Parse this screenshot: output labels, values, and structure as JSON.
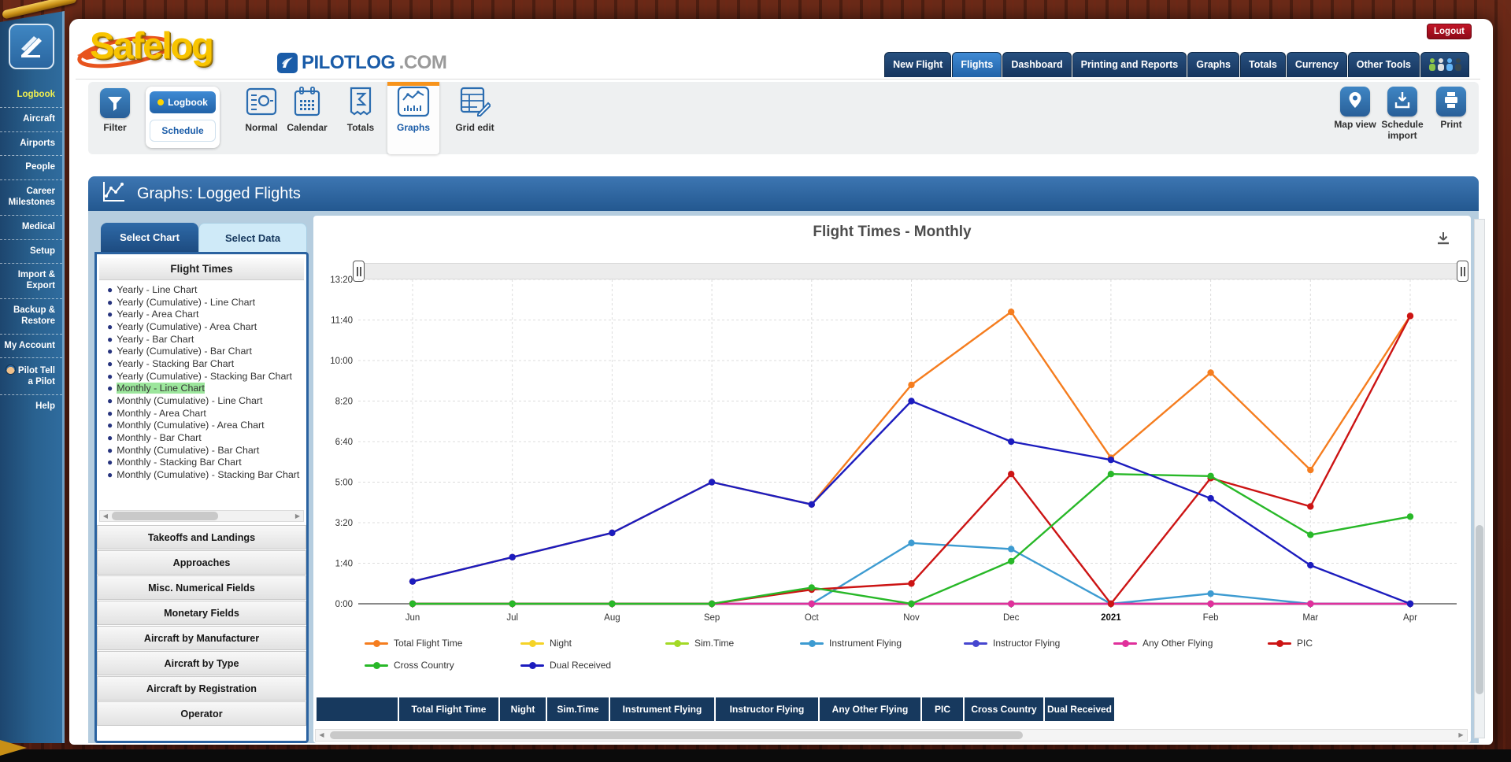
{
  "window": {
    "logout": "Logout"
  },
  "brand": {
    "name": "Safelog",
    "pilotlog": "PILOTLOG",
    "tld": ".COM"
  },
  "sidebar": {
    "items": [
      {
        "label": "Logbook",
        "active": true
      },
      {
        "label": "Aircraft"
      },
      {
        "label": "Airports"
      },
      {
        "label": "People"
      },
      {
        "label": "Career Milestones"
      },
      {
        "label": "Medical"
      },
      {
        "label": "Setup"
      },
      {
        "label": "Import & Export"
      },
      {
        "label": "Backup & Restore"
      },
      {
        "label": "My Account"
      },
      {
        "label": "Pilot Tell a Pilot",
        "avatar": true
      },
      {
        "label": "Help"
      }
    ]
  },
  "top_nav": {
    "tabs": [
      {
        "label": "New Flight"
      },
      {
        "label": "Flights",
        "active": true
      },
      {
        "label": "Dashboard"
      },
      {
        "label": "Printing and Reports"
      },
      {
        "label": "Graphs"
      },
      {
        "label": "Totals"
      },
      {
        "label": "Currency"
      },
      {
        "label": "Other Tools"
      }
    ]
  },
  "toolbar": {
    "filter_label": "Filter",
    "logbook_label": "Logbook",
    "schedule_label": "Schedule",
    "views": [
      {
        "label": "Normal",
        "icon": "normal"
      },
      {
        "label": "Calendar",
        "icon": "calendar"
      },
      {
        "label": "Totals",
        "icon": "totals"
      },
      {
        "label": "Graphs",
        "icon": "graphs",
        "active": true
      },
      {
        "label": "Grid edit",
        "icon": "grid-edit"
      }
    ],
    "right": [
      {
        "label": "Map view",
        "icon": "map-view"
      },
      {
        "label": "Schedule import",
        "icon": "schedule-import"
      },
      {
        "label": "Print",
        "icon": "print"
      }
    ]
  },
  "page_header": {
    "title": "Graphs: Logged Flights"
  },
  "selector_panel": {
    "tabs": [
      {
        "label": "Select Chart",
        "active": true
      },
      {
        "label": "Select Data"
      }
    ],
    "group_title": "Flight Times",
    "charts": [
      "Yearly - Line Chart",
      "Yearly (Cumulative) - Line Chart",
      "Yearly - Area Chart",
      "Yearly (Cumulative) - Area Chart",
      "Yearly - Bar Chart",
      "Yearly (Cumulative) - Bar Chart",
      "Yearly - Stacking Bar Chart",
      "Yearly (Cumulative) - Stacking Bar Chart",
      "Monthly - Line Chart",
      "Monthly (Cumulative) - Line Chart",
      "Monthly - Area Chart",
      "Monthly (Cumulative) - Area Chart",
      "Monthly - Bar Chart",
      "Monthly (Cumulative) - Bar Chart",
      "Monthly - Stacking Bar Chart",
      "Monthly (Cumulative) - Stacking Bar Chart"
    ],
    "selected": "Monthly - Line Chart",
    "sections": [
      "Takeoffs and Landings",
      "Approaches",
      "Misc. Numerical Fields",
      "Monetary Fields",
      "Aircraft by Manufacturer",
      "Aircraft by Type",
      "Aircraft by Registration",
      "Operator"
    ]
  },
  "chart_data": {
    "type": "line",
    "title": "Flight Times - Monthly",
    "x": [
      "Jun",
      "Jul",
      "Aug",
      "Sep",
      "Oct",
      "Nov",
      "Dec",
      "2021",
      "Feb",
      "Mar",
      "Apr"
    ],
    "y_ticks": [
      "0:00",
      "1:40",
      "3:20",
      "5:00",
      "6:40",
      "8:20",
      "10:00",
      "11:40",
      "13:20"
    ],
    "ylim_minutes": [
      0,
      800
    ],
    "grid": true,
    "legend_position": "bottom",
    "series": [
      {
        "name": "Total Flight Time",
        "color": "#f57d1f",
        "values": [
          "0:55",
          "1:55",
          "2:55",
          "5:00",
          "4:05",
          "9:00",
          "12:00",
          "6:00",
          "9:30",
          "5:30",
          "11:50"
        ]
      },
      {
        "name": "Night",
        "color": "#f5d327",
        "values": [
          "0:00",
          "0:00",
          "0:00",
          "0:00",
          "0:00",
          "0:00",
          "0:00",
          "0:00",
          "0:00",
          "0:00",
          "0:00"
        ]
      },
      {
        "name": "Sim.Time",
        "color": "#a3d926",
        "values": [
          "0:00",
          "0:00",
          "0:00",
          "0:00",
          "0:00",
          "0:00",
          "0:00",
          "0:00",
          "0:00",
          "0:00",
          "0:00"
        ]
      },
      {
        "name": "Instrument Flying",
        "color": "#3d9bd1",
        "values": [
          "0:00",
          "0:00",
          "0:00",
          "0:00",
          "0:00",
          "2:30",
          "2:15",
          "0:00",
          "0:25",
          "0:00",
          "0:00"
        ]
      },
      {
        "name": "Instructor Flying",
        "color": "#4646cf",
        "values": [
          "0:00",
          "0:00",
          "0:00",
          "0:00",
          "0:00",
          "0:00",
          "0:00",
          "0:00",
          "0:00",
          "0:00",
          "0:00"
        ]
      },
      {
        "name": "Any Other Flying",
        "color": "#e0309b",
        "values": [
          "0:00",
          "0:00",
          "0:00",
          "0:00",
          "0:00",
          "0:00",
          "0:00",
          "0:00",
          "0:00",
          "0:00",
          "0:00"
        ]
      },
      {
        "name": "PIC",
        "color": "#cc1414",
        "values": [
          "0:00",
          "0:00",
          "0:00",
          "0:00",
          "0:35",
          "0:50",
          "5:20",
          "0:00",
          "5:10",
          "4:00",
          "11:50"
        ]
      },
      {
        "name": "Cross Country",
        "color": "#28b828",
        "values": [
          "0:00",
          "0:00",
          "0:00",
          "0:00",
          "0:40",
          "0:00",
          "1:45",
          "5:20",
          "5:15",
          "2:50",
          "3:35"
        ]
      },
      {
        "name": "Dual Received",
        "color": "#1c1cbe",
        "values": [
          "0:55",
          "1:55",
          "2:55",
          "5:00",
          "4:05",
          "8:20",
          "6:40",
          "5:55",
          "4:20",
          "1:35",
          "0:00"
        ]
      }
    ]
  },
  "table": {
    "headers": [
      "",
      "Total Flight Time",
      "Night",
      "Sim.Time",
      "Instrument Flying",
      "Instructor Flying",
      "Any Other Flying",
      "PIC",
      "Cross Country",
      "Dual Received"
    ]
  }
}
